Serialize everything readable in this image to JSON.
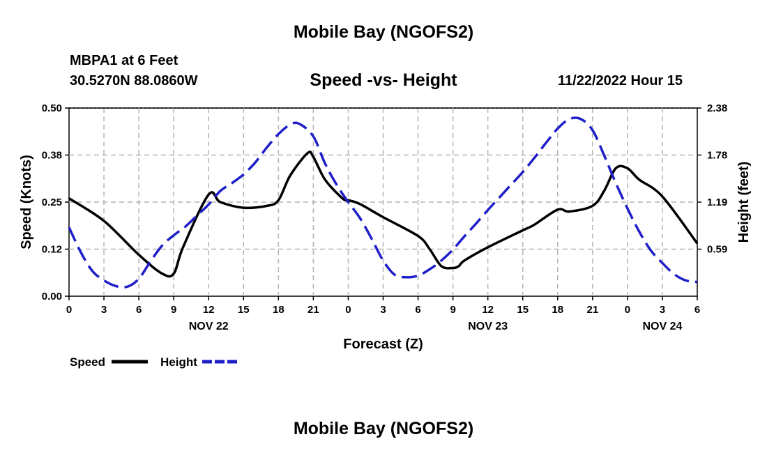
{
  "page": {
    "title_top": "Mobile Bay (NGOFS2)",
    "station": "MBPA1 at 6 Feet",
    "coords": "30.5270N  88.0860W",
    "timestamp": "11/22/2022 Hour 15",
    "title_bottom": "Mobile Bay (NGOFS2)"
  },
  "colors": {
    "speed": "#000000",
    "height": "#1f1fc8",
    "grid": "#b4b4b4"
  },
  "chart_data": {
    "type": "line",
    "title": "Speed -vs- Height",
    "xlabel": "Forecast (Z)",
    "ylabel": "Speed (Knots)",
    "y2label": "Height (feet)",
    "ylim": [
      0,
      0.5
    ],
    "y2lim": [
      0,
      2.38
    ],
    "yticks": [
      "0.00",
      "0.12",
      "0.25",
      "0.38",
      "0.50"
    ],
    "y2ticks": [
      "0.59",
      "1.19",
      "1.78",
      "2.38"
    ],
    "xlim": [
      0,
      54
    ],
    "xtick_labels": [
      "0",
      "3",
      "6",
      "9",
      "12",
      "15",
      "18",
      "21",
      "0",
      "3",
      "6",
      "9",
      "12",
      "15",
      "18",
      "21",
      "0",
      "3",
      "6"
    ],
    "date_labels": [
      {
        "label": "NOV 22",
        "at": 12
      },
      {
        "label": "NOV 23",
        "at": 36
      },
      {
        "label": "NOV 24",
        "at": 51
      }
    ],
    "grid": true,
    "legend_position": "bottom-left",
    "series": [
      {
        "name": "Speed",
        "axis": "left",
        "style": "solid",
        "x": [
          0,
          3,
          6,
          8,
          9,
          9.8,
          12,
          13,
          15,
          17,
          18,
          19,
          20.5,
          21,
          22,
          23.5,
          24,
          25,
          27,
          30,
          31,
          32,
          33,
          33.5,
          34,
          36,
          39,
          40,
          42,
          43,
          45,
          46,
          47,
          48,
          49,
          51,
          54
        ],
        "y": [
          0.26,
          0.2,
          0.11,
          0.06,
          0.06,
          0.13,
          0.27,
          0.25,
          0.235,
          0.24,
          0.255,
          0.32,
          0.38,
          0.37,
          0.31,
          0.26,
          0.255,
          0.245,
          0.21,
          0.16,
          0.125,
          0.08,
          0.075,
          0.08,
          0.095,
          0.13,
          0.175,
          0.19,
          0.23,
          0.225,
          0.24,
          0.28,
          0.34,
          0.34,
          0.31,
          0.265,
          0.14
        ]
      },
      {
        "name": "Height",
        "axis": "right",
        "style": "dashed",
        "x": [
          0,
          1,
          2,
          3,
          4,
          5,
          6,
          7,
          8,
          9,
          10,
          11,
          12,
          13,
          14,
          15,
          16,
          17,
          18,
          19,
          19.8,
          21,
          22,
          23,
          24,
          25,
          26,
          27,
          28,
          29,
          30,
          31,
          32,
          33,
          34,
          35,
          36,
          37,
          38,
          39,
          40,
          41,
          42,
          43,
          44,
          45,
          46,
          47,
          48,
          49,
          50,
          51,
          52,
          53,
          54
        ],
        "y": [
          0.87,
          0.56,
          0.32,
          0.2,
          0.13,
          0.12,
          0.22,
          0.44,
          0.64,
          0.77,
          0.88,
          1.02,
          1.16,
          1.33,
          1.43,
          1.54,
          1.69,
          1.88,
          2.05,
          2.17,
          2.18,
          2.02,
          1.68,
          1.41,
          1.19,
          0.99,
          0.73,
          0.45,
          0.27,
          0.24,
          0.26,
          0.34,
          0.45,
          0.59,
          0.76,
          0.92,
          1.09,
          1.25,
          1.41,
          1.57,
          1.75,
          1.94,
          2.12,
          2.24,
          2.24,
          2.1,
          1.78,
          1.43,
          1.11,
          0.82,
          0.58,
          0.42,
          0.28,
          0.2,
          0.18
        ]
      }
    ]
  }
}
